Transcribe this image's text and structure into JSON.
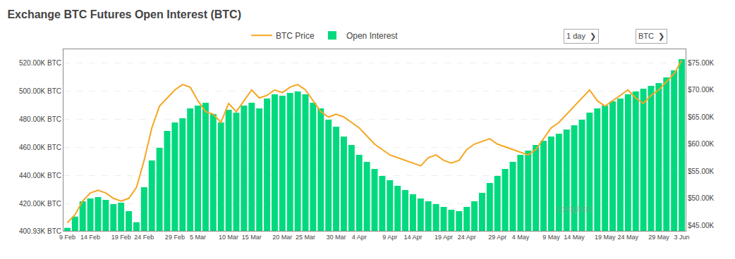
{
  "chart_data": {
    "type": "bar",
    "title": "Exchange BTC Futures Open Interest (BTC)",
    "categories": [
      "9 Feb",
      null,
      null,
      "14 Feb",
      null,
      null,
      null,
      "19 Feb",
      null,
      null,
      "24 Feb",
      null,
      null,
      null,
      "29 Feb",
      null,
      null,
      "5 Mar",
      null,
      null,
      null,
      "10 Mar",
      null,
      null,
      "15 Mar",
      null,
      null,
      null,
      "20 Mar",
      null,
      null,
      "25 Mar",
      null,
      null,
      null,
      "30 Mar",
      null,
      null,
      "4 Apr",
      null,
      null,
      null,
      "9 Apr",
      null,
      null,
      "14 Apr",
      null,
      null,
      null,
      "19 Apr",
      null,
      null,
      "24 Apr",
      null,
      null,
      null,
      "29 Apr",
      null,
      null,
      "4 May",
      null,
      null,
      null,
      "9 May",
      null,
      null,
      "14 May",
      null,
      null,
      null,
      "19 May",
      null,
      null,
      "24 May",
      null,
      null,
      null,
      "29 May",
      null,
      null,
      "3 Jun"
    ],
    "series": [
      {
        "name": "BTC Price",
        "type": "line",
        "color": "#f5a623",
        "axis": "y2",
        "values": [
          45500,
          47000,
          49500,
          51000,
          51500,
          51000,
          50000,
          49500,
          50000,
          52000,
          57000,
          63000,
          67000,
          68500,
          70000,
          71000,
          70500,
          68000,
          66000,
          65500,
          64000,
          67500,
          66000,
          68000,
          70000,
          68500,
          69000,
          70000,
          69500,
          70500,
          71000,
          70000,
          68000,
          66000,
          65000,
          65500,
          65000,
          64000,
          63000,
          61500,
          60000,
          59000,
          58000,
          57500,
          57000,
          56500,
          56000,
          57500,
          58000,
          57000,
          56500,
          57000,
          59000,
          60000,
          60500,
          61000,
          60000,
          59500,
          59000,
          58500,
          58000,
          59000,
          61000,
          63000,
          64000,
          65500,
          67000,
          68500,
          70000,
          68000,
          67000,
          68000,
          69000,
          70000,
          68500,
          67500,
          69000,
          70000,
          71500,
          73000,
          75500
        ]
      },
      {
        "name": "Open Interest",
        "type": "bar",
        "color": "#00d97e",
        "values": [
          403000,
          411000,
          422000,
          424000,
          425000,
          423000,
          420000,
          421000,
          415000,
          407000,
          432000,
          451000,
          460000,
          472000,
          478000,
          481000,
          488000,
          490000,
          492000,
          484000,
          478000,
          487000,
          485000,
          490000,
          492000,
          488000,
          495000,
          498000,
          497000,
          499000,
          500000,
          498000,
          492000,
          488000,
          480000,
          475000,
          468000,
          462000,
          455000,
          450000,
          445000,
          440000,
          437000,
          433000,
          430000,
          427000,
          424000,
          422000,
          420000,
          418000,
          416000,
          415000,
          418000,
          422000,
          428000,
          435000,
          440000,
          445000,
          450000,
          455000,
          458000,
          462000,
          465000,
          468000,
          470000,
          473000,
          476000,
          480000,
          485000,
          488000,
          490000,
          493000,
          495000,
          498000,
          500000,
          502000,
          504000,
          506000,
          510000,
          515000,
          523000
        ]
      }
    ],
    "ylim": [
      400930,
      530000
    ],
    "yticks": [
      {
        "value": 400930,
        "label": "400.93K BTC"
      },
      {
        "value": 420000,
        "label": "420.00K BTC"
      },
      {
        "value": 440000,
        "label": "440.00K BTC"
      },
      {
        "value": 460000,
        "label": "460.00K BTC"
      },
      {
        "value": 480000,
        "label": "480.00K BTC"
      },
      {
        "value": 500000,
        "label": "500.00K BTC"
      },
      {
        "value": 520000,
        "label": "520.00K BTC"
      }
    ],
    "y2lim": [
      44000,
      77500
    ],
    "y2ticks": [
      {
        "value": 45000,
        "label": "$45.00K"
      },
      {
        "value": 50000,
        "label": "$50.00K"
      },
      {
        "value": 55000,
        "label": "$55.00K"
      },
      {
        "value": 60000,
        "label": "$60.00K"
      },
      {
        "value": 65000,
        "label": "$65.00K"
      },
      {
        "value": 70000,
        "label": "$70.00K"
      },
      {
        "value": 75000,
        "label": "$75.00K"
      }
    ],
    "grid": true,
    "legend": "top",
    "annotations": [
      "coinglass",
      "1 day  ❯",
      "BTC  ❯"
    ]
  }
}
